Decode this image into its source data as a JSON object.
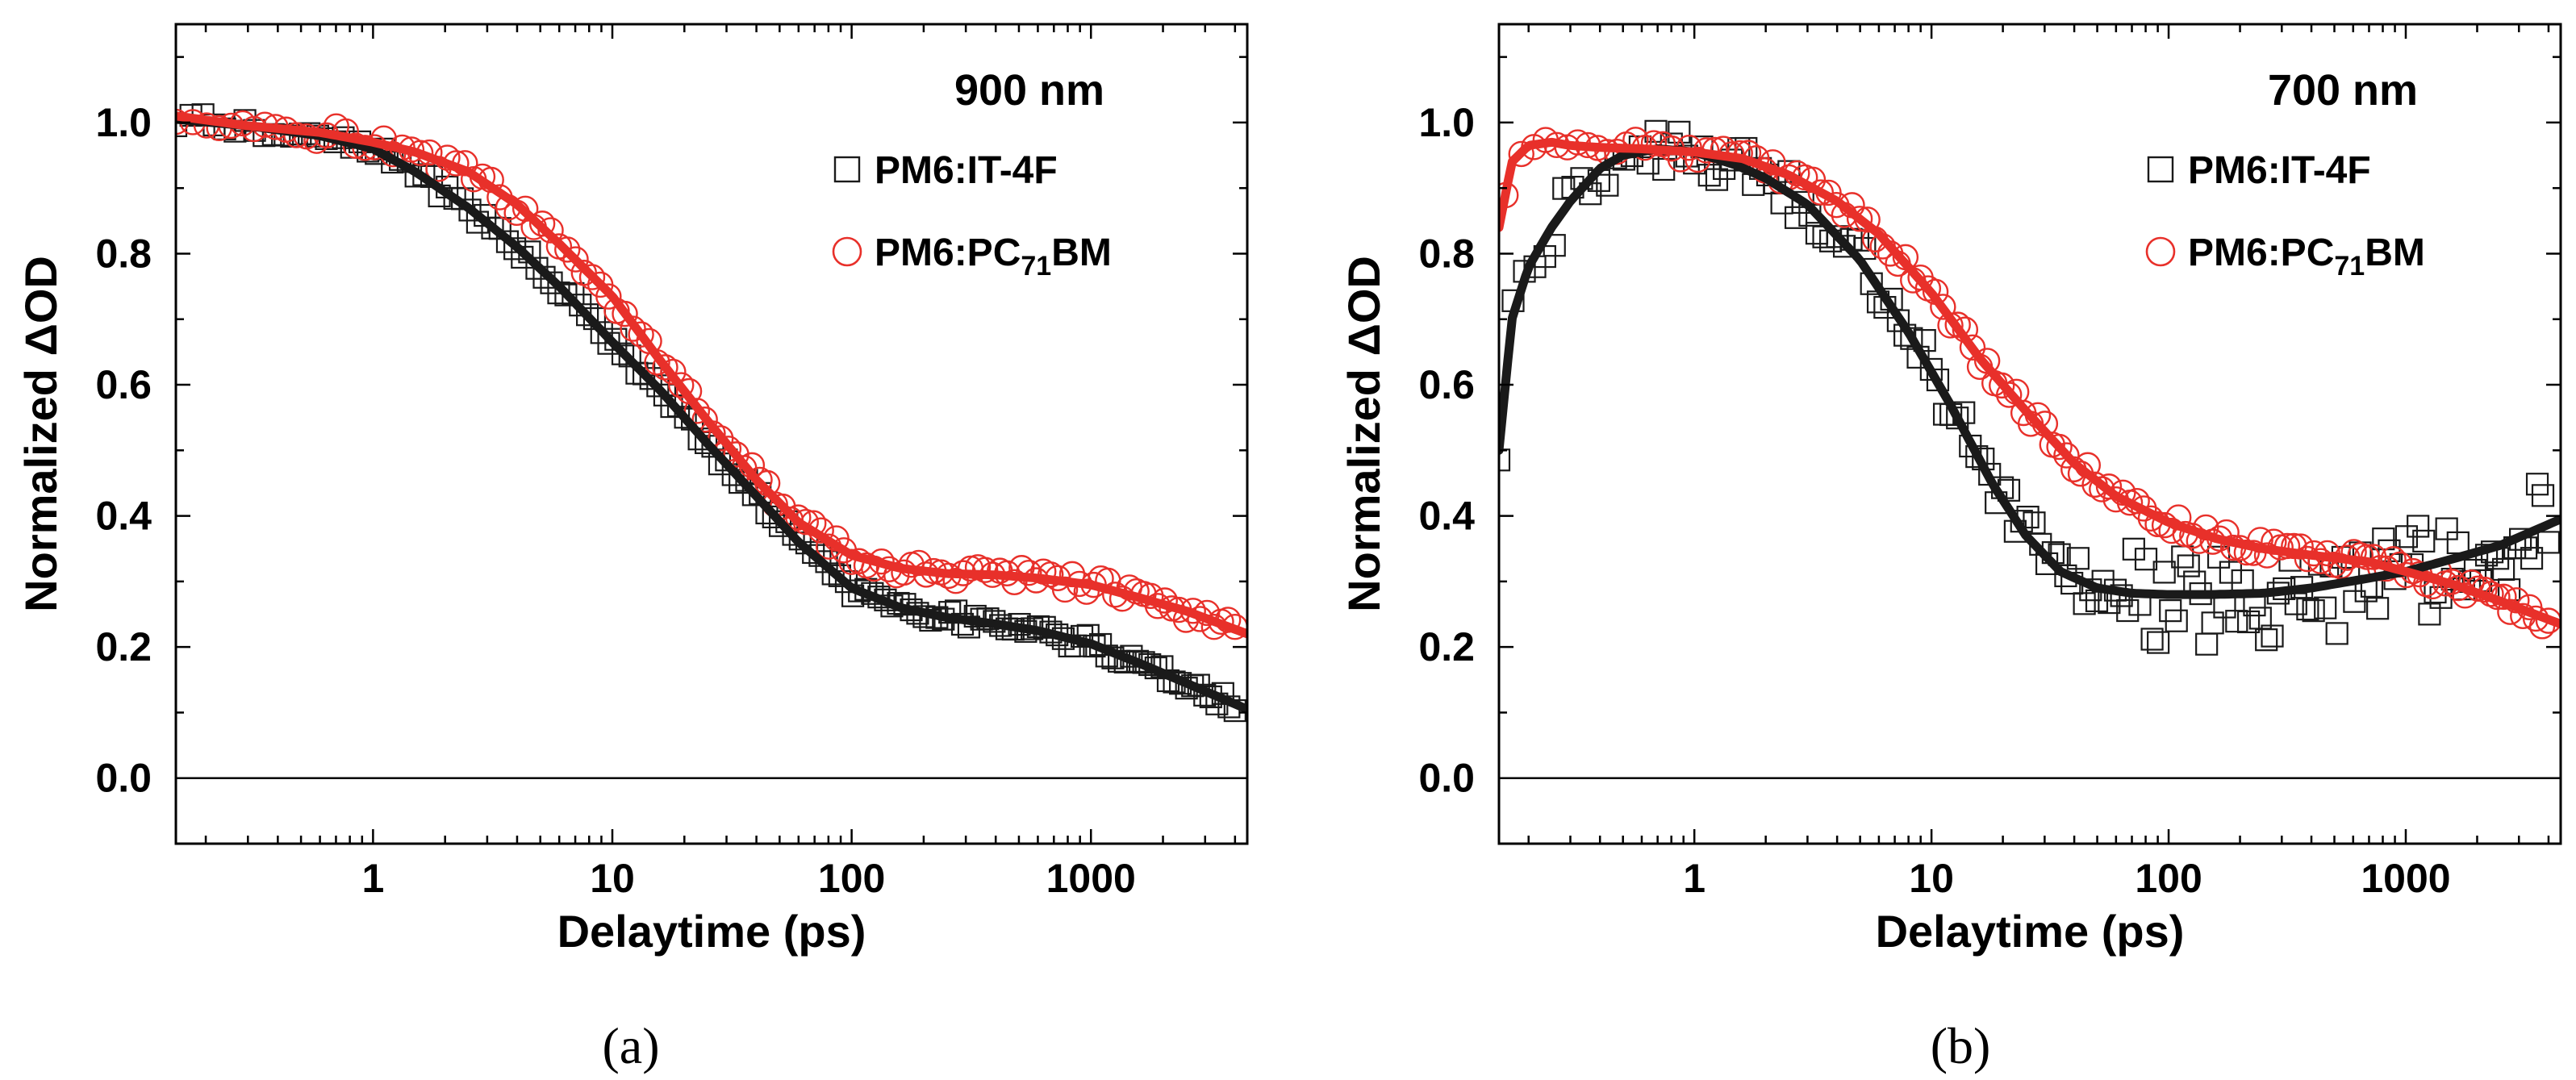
{
  "chart_data": [
    {
      "type": "scatter",
      "panel_label": "(a)",
      "annotation": "900 nm",
      "xlabel": "Delaytime (ps)",
      "ylabel": "Normalized ΔOD",
      "xscale": "log",
      "xlim": [
        0.15,
        4500
      ],
      "ylim": [
        -0.1,
        1.15
      ],
      "xticks": [
        1,
        10,
        100,
        1000
      ],
      "xtick_labels": [
        "1",
        "10",
        "100",
        "1000"
      ],
      "yticks": [
        0.0,
        0.2,
        0.4,
        0.6,
        0.8,
        1.0
      ],
      "ytick_labels": [
        "0.0",
        "0.2",
        "0.4",
        "0.6",
        "0.8",
        "1.0"
      ],
      "zero_line": true,
      "legend_position": "top-right",
      "legend": [
        {
          "name": "PM6:IT-4F",
          "name_parts": [
            "PM6:IT-4F"
          ],
          "marker": "square",
          "color": "#1a1a1a"
        },
        {
          "name": "PM6:PC71BM",
          "name_parts": [
            "PM6:PC",
            "71",
            "BM"
          ],
          "marker": "circle",
          "color": "#e8302a"
        }
      ],
      "series": [
        {
          "name": "PM6:IT-4F",
          "marker": "square",
          "color": "#1a1a1a",
          "fit": {
            "x": [
              0.15,
              0.3,
              0.6,
              1,
              1.5,
              2.5,
              4,
              6,
              10,
              16,
              25,
              40,
              60,
              100,
              160,
              250,
              400,
              600,
              1000,
              1600,
              2500,
              4500
            ],
            "y": [
              1.005,
              0.995,
              0.98,
              0.96,
              0.925,
              0.87,
              0.81,
              0.75,
              0.665,
              0.59,
              0.51,
              0.43,
              0.36,
              0.29,
              0.26,
              0.245,
              0.235,
              0.225,
              0.205,
              0.175,
              0.145,
              0.105
            ]
          },
          "points": {
            "x_range": [
              0.15,
              4000
            ],
            "count": 150,
            "jitter": 0.012
          }
        },
        {
          "name": "PM6:PC71BM",
          "marker": "circle",
          "color": "#e8302a",
          "fit": {
            "x": [
              0.15,
              0.3,
              0.6,
              1,
              1.5,
              2.5,
              4,
              6,
              10,
              16,
              25,
              40,
              60,
              100,
              160,
              250,
              400,
              600,
              1000,
              1600,
              2500,
              4500
            ],
            "y": [
              1.01,
              0.995,
              0.985,
              0.97,
              0.955,
              0.925,
              0.875,
              0.815,
              0.735,
              0.635,
              0.545,
              0.455,
              0.39,
              0.34,
              0.32,
              0.312,
              0.31,
              0.305,
              0.295,
              0.275,
              0.255,
              0.22
            ]
          },
          "points": {
            "x_range": [
              0.15,
              4000
            ],
            "count": 130,
            "jitter": 0.014
          }
        }
      ]
    },
    {
      "type": "scatter",
      "panel_label": "(b)",
      "annotation": "700 nm",
      "xlabel": "Delaytime (ps)",
      "ylabel": "Normalized ΔOD",
      "xscale": "log",
      "xlim": [
        0.15,
        4500
      ],
      "ylim": [
        -0.1,
        1.15
      ],
      "xticks": [
        1,
        10,
        100,
        1000
      ],
      "xtick_labels": [
        "1",
        "10",
        "100",
        "1000"
      ],
      "yticks": [
        0.0,
        0.2,
        0.4,
        0.6,
        0.8,
        1.0
      ],
      "ytick_labels": [
        "0.0",
        "0.2",
        "0.4",
        "0.6",
        "0.8",
        "1.0"
      ],
      "zero_line": true,
      "legend_position": "top-right",
      "legend": [
        {
          "name": "PM6:IT-4F",
          "name_parts": [
            "PM6:IT-4F"
          ],
          "marker": "square",
          "color": "#1a1a1a"
        },
        {
          "name": "PM6:PC71BM",
          "name_parts": [
            "PM6:PC",
            "71",
            "BM"
          ],
          "marker": "circle",
          "color": "#e8302a"
        }
      ],
      "series": [
        {
          "name": "PM6:IT-4F",
          "marker": "square",
          "color": "#1a1a1a",
          "fit": {
            "x": [
              0.15,
              0.17,
              0.2,
              0.25,
              0.3,
              0.4,
              0.5,
              0.7,
              1,
              1.5,
              2,
              3,
              5,
              8,
              12,
              18,
              25,
              35,
              50,
              70,
              100,
              150,
              250,
              400,
              700,
              1000,
              1600,
              2500,
              4500
            ],
            "y": [
              0.5,
              0.7,
              0.78,
              0.84,
              0.88,
              0.93,
              0.95,
              0.96,
              0.955,
              0.935,
              0.915,
              0.875,
              0.79,
              0.68,
              0.57,
              0.45,
              0.37,
              0.315,
              0.29,
              0.282,
              0.28,
              0.28,
              0.282,
              0.29,
              0.305,
              0.315,
              0.335,
              0.355,
              0.395
            ]
          },
          "points": {
            "x_range": [
              0.15,
              4000
            ],
            "count": 160,
            "jitter": 0.035
          }
        },
        {
          "name": "PM6:PC71BM",
          "marker": "circle",
          "color": "#e8302a",
          "fit": {
            "x": [
              0.15,
              0.17,
              0.2,
              0.25,
              0.3,
              0.4,
              0.6,
              1,
              1.6,
              2.5,
              4,
              6,
              10,
              16,
              25,
              40,
              60,
              100,
              160,
              250,
              400,
              700,
              1000,
              1600,
              2500,
              4500
            ],
            "y": [
              0.84,
              0.94,
              0.965,
              0.97,
              0.965,
              0.962,
              0.96,
              0.955,
              0.945,
              0.92,
              0.88,
              0.83,
              0.74,
              0.64,
              0.56,
              0.48,
              0.43,
              0.39,
              0.365,
              0.35,
              0.34,
              0.33,
              0.315,
              0.295,
              0.27,
              0.235
            ]
          },
          "points": {
            "x_range": [
              0.16,
              4000
            ],
            "count": 140,
            "jitter": 0.014
          }
        }
      ]
    }
  ]
}
